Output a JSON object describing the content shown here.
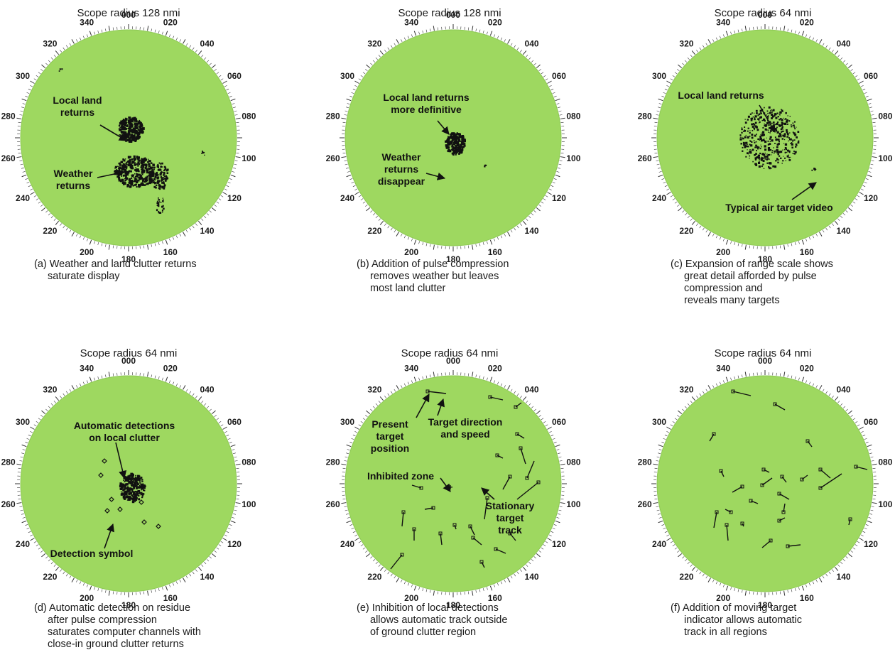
{
  "colors": {
    "scope_fill": "#9ed860",
    "scope_edge": "#8cc853",
    "returns": "#111111",
    "ink": "#1a1a1a"
  },
  "tick_labels": [
    "000",
    "020",
    "040",
    "060",
    "080",
    "100",
    "120",
    "140",
    "160",
    "180",
    "200",
    "220",
    "240",
    "260",
    "280",
    "300",
    "320",
    "340"
  ],
  "panels": [
    {
      "id": "a",
      "title": "Scope radius 128 nmi",
      "caption": [
        "(a) Weather and land clutter returns",
        "saturate display"
      ],
      "annotations": [
        {
          "lines": [
            "Local land",
            "returns"
          ]
        },
        {
          "lines": [
            "Weather",
            "returns"
          ]
        }
      ]
    },
    {
      "id": "b",
      "title": "Scope radius 128 nmi",
      "caption": [
        "(b) Addition of pulse compression",
        "removes weather but leaves",
        "most land clutter"
      ],
      "annotations": [
        {
          "lines": [
            "Local land returns",
            "more definitive"
          ]
        },
        {
          "lines": [
            "Weather",
            "returns",
            "disappear"
          ]
        }
      ]
    },
    {
      "id": "c",
      "title": "Scope radius 64 nmi",
      "caption": [
        "(c) Expansion of range scale shows",
        "great detail afforded by pulse",
        "compression and",
        "reveals many targets"
      ],
      "annotations": [
        {
          "lines": [
            "Local land returns"
          ]
        },
        {
          "lines": [
            "Typical air target video"
          ]
        }
      ]
    },
    {
      "id": "d",
      "title": "Scope radius 64 nmi",
      "caption": [
        "(d) Automatic detection on residue",
        "after pulse compression",
        "saturates computer channels with",
        "close-in ground clutter returns"
      ],
      "annotations": [
        {
          "lines": [
            "Automatic detections",
            "on local clutter"
          ]
        },
        {
          "lines": [
            "Detection symbol"
          ]
        }
      ]
    },
    {
      "id": "e",
      "title": "Scope radius 64 nmi",
      "caption": [
        "(e) Inhibition of local detections",
        "allows automatic track outside",
        "of ground clutter region"
      ],
      "annotations": [
        {
          "lines": [
            "Present",
            "target",
            "position"
          ]
        },
        {
          "lines": [
            "Target direction",
            "and speed"
          ]
        },
        {
          "lines": [
            "Inhibited zone"
          ]
        },
        {
          "lines": [
            "Stationary",
            "target",
            "track"
          ]
        }
      ]
    },
    {
      "id": "f",
      "title": "Scope radius 64 nmi",
      "caption": [
        "(f) Addition of moving target",
        "indicator allows automatic",
        "track in all regions"
      ],
      "annotations": []
    }
  ]
}
